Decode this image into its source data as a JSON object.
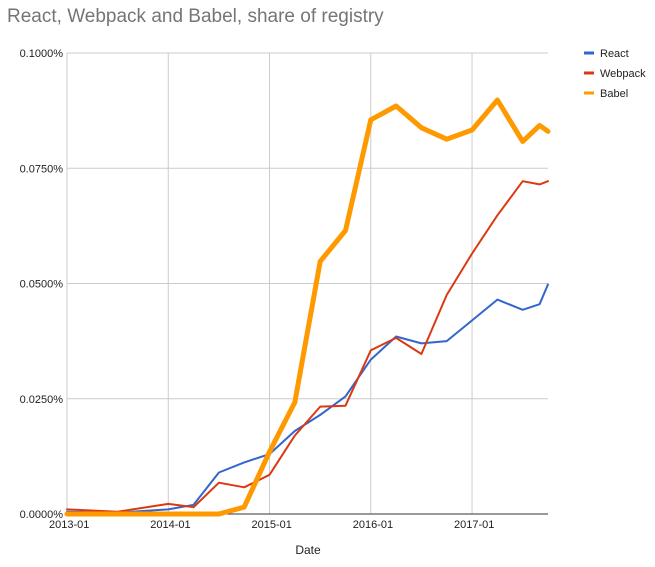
{
  "chart_data": {
    "type": "line",
    "title": "React, Webpack and Babel, share of registry",
    "xlabel": "Date",
    "ylabel": "",
    "x_ticks": [
      {
        "label": "2013-01",
        "t": 0
      },
      {
        "label": "2014-01",
        "t": 12
      },
      {
        "label": "2015-01",
        "t": 24
      },
      {
        "label": "2016-01",
        "t": 36
      },
      {
        "label": "2017-01",
        "t": 48
      }
    ],
    "xlim": [
      0,
      57
    ],
    "ylim": [
      0,
      0.1
    ],
    "y_ticks": [
      {
        "label": "0.0000%",
        "v": 0
      },
      {
        "label": "0.0250%",
        "v": 0.025
      },
      {
        "label": "0.0500%",
        "v": 0.05
      },
      {
        "label": "0.0750%",
        "v": 0.075
      },
      {
        "label": "0.1000%",
        "v": 0.1
      }
    ],
    "grid": true,
    "legend": "right",
    "series": [
      {
        "name": "React",
        "color": "#3366cc",
        "width": 2,
        "points": [
          [
            0,
            0.0005
          ],
          [
            6,
            0.0003
          ],
          [
            12,
            0.001
          ],
          [
            15,
            0.002
          ],
          [
            18,
            0.009
          ],
          [
            21,
            0.0112
          ],
          [
            24,
            0.013
          ],
          [
            27,
            0.018
          ],
          [
            30,
            0.0215
          ],
          [
            33,
            0.0255
          ],
          [
            36,
            0.0335
          ],
          [
            39,
            0.0385
          ],
          [
            42,
            0.037
          ],
          [
            45,
            0.0375
          ],
          [
            48,
            0.042
          ],
          [
            51,
            0.0465
          ],
          [
            54,
            0.0443
          ],
          [
            56,
            0.0455
          ],
          [
            57,
            0.0498
          ]
        ]
      },
      {
        "name": "Webpack",
        "color": "#dc3912",
        "width": 2,
        "points": [
          [
            0,
            0.001
          ],
          [
            6,
            0.0005
          ],
          [
            12,
            0.0022
          ],
          [
            15,
            0.0015
          ],
          [
            18,
            0.0068
          ],
          [
            21,
            0.0058
          ],
          [
            24,
            0.0085
          ],
          [
            27,
            0.017
          ],
          [
            30,
            0.0233
          ],
          [
            33,
            0.0235
          ],
          [
            36,
            0.0355
          ],
          [
            39,
            0.0382
          ],
          [
            42,
            0.0347
          ],
          [
            45,
            0.0475
          ],
          [
            48,
            0.0565
          ],
          [
            51,
            0.0648
          ],
          [
            54,
            0.0722
          ],
          [
            56,
            0.0715
          ],
          [
            57,
            0.0722
          ]
        ]
      },
      {
        "name": "Babel",
        "color": "#ff9900",
        "width": 5,
        "points": [
          [
            0,
            0
          ],
          [
            6,
            0
          ],
          [
            12,
            0
          ],
          [
            18,
            0
          ],
          [
            21,
            0.0015
          ],
          [
            24,
            0.0135
          ],
          [
            27,
            0.0242
          ],
          [
            30,
            0.0548
          ],
          [
            33,
            0.0615
          ],
          [
            36,
            0.0855
          ],
          [
            39,
            0.0885
          ],
          [
            42,
            0.0838
          ],
          [
            45,
            0.0813
          ],
          [
            48,
            0.0833
          ],
          [
            51,
            0.0898
          ],
          [
            54,
            0.0808
          ],
          [
            56,
            0.0843
          ],
          [
            57,
            0.083
          ]
        ]
      }
    ]
  }
}
